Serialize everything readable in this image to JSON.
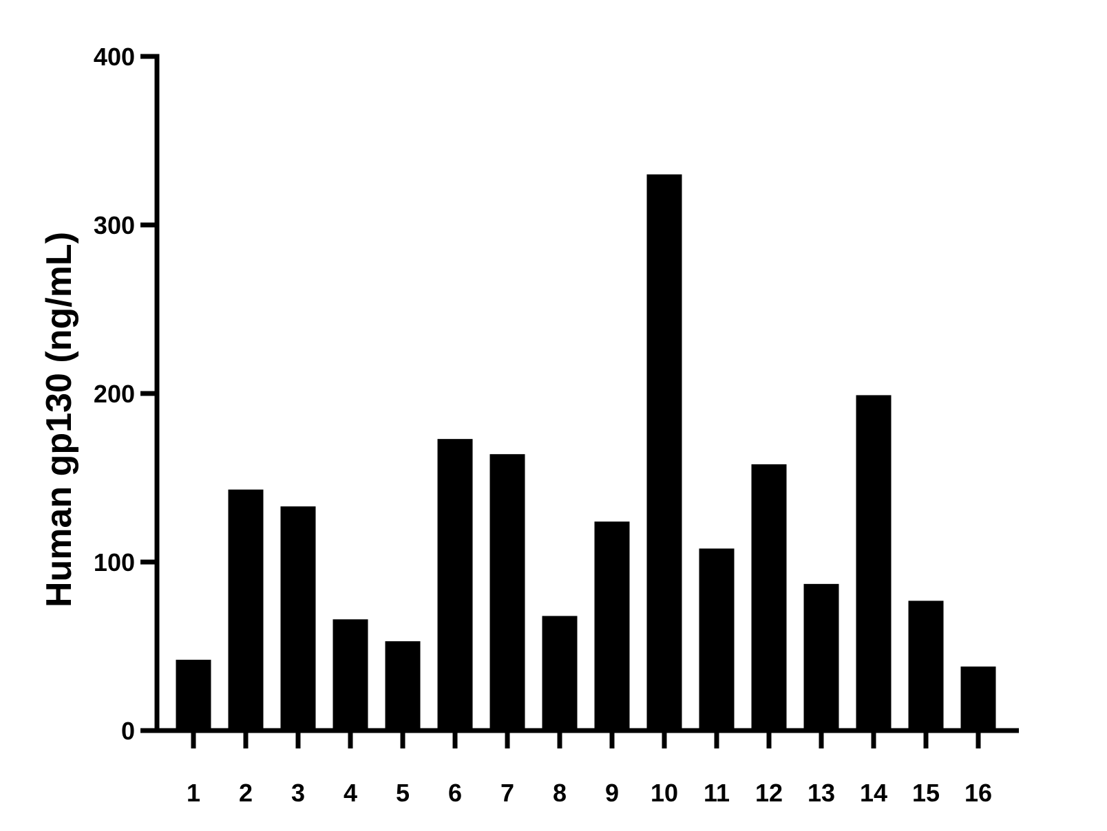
{
  "chart_data": {
    "type": "bar",
    "categories": [
      "1",
      "2",
      "3",
      "4",
      "5",
      "6",
      "7",
      "8",
      "9",
      "10",
      "11",
      "12",
      "13",
      "14",
      "15",
      "16"
    ],
    "values": [
      42,
      143,
      133,
      66,
      53,
      173,
      164,
      68,
      124,
      330,
      108,
      158,
      87,
      199,
      77,
      38
    ],
    "title": "",
    "xlabel": "",
    "ylabel": "Human gp130 (ng/mL)",
    "ylim": [
      0,
      400
    ],
    "yticks": [
      0,
      100,
      200,
      300,
      400
    ],
    "ytick_labels": [
      "0",
      "100",
      "200",
      "300",
      "400"
    ],
    "grid": false,
    "legend": "none",
    "bar_color": "#000000"
  }
}
